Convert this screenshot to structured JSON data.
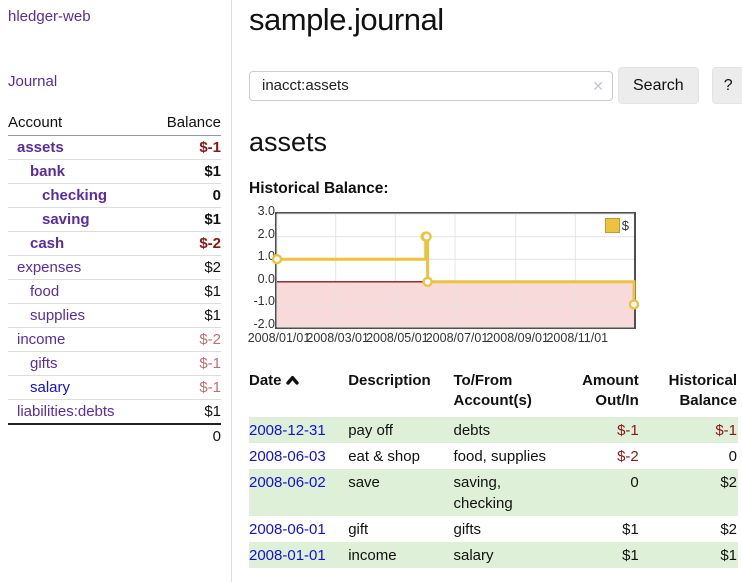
{
  "brand": "hledger-web",
  "sidebar": {
    "journal_link": "Journal",
    "accounts_header": {
      "account": "Account",
      "balance": "Balance"
    },
    "accounts": [
      {
        "name": "assets",
        "level": 1,
        "bold": true,
        "balance": "$-1",
        "tone": "strong"
      },
      {
        "name": "bank",
        "level": 2,
        "bold": true,
        "balance": "$1",
        "tone": "none"
      },
      {
        "name": "checking",
        "level": 3,
        "bold": true,
        "balance": "0",
        "tone": "none"
      },
      {
        "name": "saving",
        "level": 3,
        "bold": true,
        "balance": "$1",
        "tone": "none"
      },
      {
        "name": "cash",
        "level": 2,
        "bold": true,
        "balance": "$-2",
        "tone": "strong"
      },
      {
        "name": "expenses",
        "level": 1,
        "bold": false,
        "balance": "$2",
        "tone": "none"
      },
      {
        "name": "food",
        "level": 2,
        "bold": false,
        "balance": "$1",
        "tone": "none"
      },
      {
        "name": "supplies",
        "level": 2,
        "bold": false,
        "balance": "$1",
        "tone": "none"
      },
      {
        "name": "income",
        "level": 1,
        "bold": false,
        "balance": "$-2",
        "tone": "soft"
      },
      {
        "name": "gifts",
        "level": 2,
        "bold": false,
        "balance": "$-1",
        "tone": "soft"
      },
      {
        "name": "salary",
        "level": 2,
        "bold": false,
        "balance": "$-1",
        "tone": "soft",
        "link_color": "blue"
      },
      {
        "name": "liabilities:debts",
        "level": 1,
        "bold": false,
        "balance": "$1",
        "tone": "none"
      }
    ],
    "total": "0"
  },
  "header": {
    "title": "sample.journal"
  },
  "search": {
    "value": "inacct:assets",
    "clear_icon": "✕",
    "search_label": "Search",
    "help_label": "?"
  },
  "account_page": {
    "title": "assets",
    "chart_heading": "Historical Balance:"
  },
  "chart_data": {
    "type": "line",
    "title": "Historical Balance:",
    "series": [
      {
        "name": "$",
        "color": "#edc240",
        "step": true,
        "points": [
          [
            "2008-01-01",
            1
          ],
          [
            "2008-06-01",
            2
          ],
          [
            "2008-06-02",
            2
          ],
          [
            "2008-06-03",
            0
          ],
          [
            "2008-12-31",
            -1
          ]
        ]
      }
    ],
    "x_range": [
      "2008-01-01",
      "2008-12-31"
    ],
    "x_ticks": [
      "2008/01/01",
      "2008/03/01",
      "2008/05/01",
      "2008/07/01",
      "2008/09/01",
      "2008/11/01"
    ],
    "y_ticks": [
      3.0,
      2.0,
      1.0,
      0.0,
      -1.0,
      -2.0
    ],
    "ylim": [
      -2,
      3
    ],
    "grid": true,
    "negative_region_fill": "#f9dada",
    "zero_line_color": "#8f1b1b",
    "legend": {
      "label": "$",
      "position": "top-right"
    }
  },
  "register": {
    "columns": [
      "Date",
      "Description",
      "To/From Account(s)",
      "Amount Out/In",
      "Historical Balance"
    ],
    "sort": {
      "column": "Date",
      "ascending": true
    },
    "rows": [
      {
        "date": "2008-12-31",
        "description": "pay off",
        "accounts": "debts",
        "amount": "$-1",
        "balance": "$-1",
        "amount_negative": true,
        "balance_negative": true,
        "highlight": true
      },
      {
        "date": "2008-06-03",
        "description": "eat & shop",
        "accounts": "food, supplies",
        "amount": "$-2",
        "balance": "0",
        "amount_negative": true,
        "balance_negative": false,
        "highlight": false
      },
      {
        "date": "2008-06-02",
        "description": "save",
        "accounts": "saving, checking",
        "amount": "0",
        "balance": "$2",
        "amount_negative": false,
        "balance_negative": false,
        "highlight": true
      },
      {
        "date": "2008-06-01",
        "description": "gift",
        "accounts": "gifts",
        "amount": "$1",
        "balance": "$2",
        "amount_negative": false,
        "balance_negative": false,
        "highlight": false
      },
      {
        "date": "2008-01-01",
        "description": "income",
        "accounts": "salary",
        "amount": "$1",
        "balance": "$1",
        "amount_negative": false,
        "balance_negative": false,
        "highlight": true
      }
    ]
  },
  "colors": {
    "accent_purple": "#5a2ca0",
    "link_blue": "#1111d7",
    "negative_strong": "#8c1414",
    "negative_soft": "#c07070",
    "row_highlight_green": "#dff0d8",
    "chart_series_gold": "#edc240",
    "chart_negative_fill": "#f9dada",
    "chart_zero_line": "#8f1b1b"
  }
}
